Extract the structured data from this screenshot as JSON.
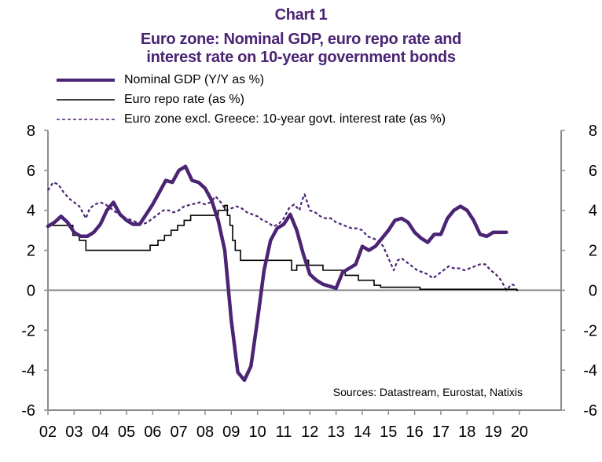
{
  "chart_data": {
    "type": "line",
    "title_line1": "Chart 1",
    "title_line2": "Euro zone: Nominal GDP, euro repo rate and",
    "title_line3": "interest rate on 10-year government bonds",
    "source": "Sources:  Datastream,  Eurostat,  Natixis",
    "xlabel": "",
    "ylabel": "",
    "ylim": [
      -6,
      8
    ],
    "xlim": [
      2002,
      2020.6
    ],
    "y_ticks": [
      "8",
      "6",
      "4",
      "2",
      "0",
      "-2",
      "-4",
      "-6"
    ],
    "y_tick_values": [
      8,
      6,
      4,
      2,
      0,
      -2,
      -4,
      -6
    ],
    "x_ticks": [
      "02",
      "03",
      "04",
      "05",
      "06",
      "07",
      "08",
      "09",
      "10",
      "11",
      "12",
      "13",
      "14",
      "15",
      "16",
      "17",
      "18",
      "19",
      "20"
    ],
    "x_tick_values": [
      2002,
      2003,
      2004,
      2005,
      2006,
      2007,
      2008,
      2009,
      2010,
      2011,
      2012,
      2013,
      2014,
      2015,
      2016,
      2017,
      2018,
      2019,
      2020
    ],
    "legend": "top-left",
    "colors": {
      "gdp": "#4B2474",
      "repo": "#000000",
      "bond": "#4B2474",
      "axis": "#8C8C8C"
    },
    "series": [
      {
        "name": "Nominal GDP (Y/Y as %)",
        "style": "thick-solid",
        "x": [
          2002.0,
          2002.25,
          2002.5,
          2002.75,
          2003.0,
          2003.25,
          2003.5,
          2003.75,
          2004.0,
          2004.25,
          2004.5,
          2004.75,
          2005.0,
          2005.25,
          2005.5,
          2005.75,
          2006.0,
          2006.25,
          2006.5,
          2006.75,
          2007.0,
          2007.25,
          2007.5,
          2007.75,
          2008.0,
          2008.25,
          2008.5,
          2008.75,
          2009.0,
          2009.25,
          2009.5,
          2009.75,
          2010.0,
          2010.25,
          2010.5,
          2010.75,
          2011.0,
          2011.25,
          2011.5,
          2011.75,
          2012.0,
          2012.25,
          2012.5,
          2012.75,
          2013.0,
          2013.25,
          2013.5,
          2013.75,
          2014.0,
          2014.25,
          2014.5,
          2014.75,
          2015.0,
          2015.25,
          2015.5,
          2015.75,
          2016.0,
          2016.25,
          2016.5,
          2016.75,
          2017.0,
          2017.25,
          2017.5,
          2017.75,
          2018.0,
          2018.25,
          2018.5,
          2018.75,
          2019.0,
          2019.25,
          2019.5
        ],
        "values": [
          3.2,
          3.4,
          3.7,
          3.4,
          2.9,
          2.7,
          2.7,
          2.9,
          3.3,
          4.0,
          4.4,
          3.8,
          3.5,
          3.3,
          3.3,
          3.8,
          4.3,
          4.9,
          5.5,
          5.4,
          6.0,
          6.2,
          5.5,
          5.4,
          5.1,
          4.5,
          3.5,
          2.0,
          -1.5,
          -4.1,
          -4.5,
          -3.8,
          -1.5,
          1.0,
          2.5,
          3.1,
          3.3,
          3.8,
          3.0,
          1.8,
          0.8,
          0.5,
          0.3,
          0.2,
          0.1,
          0.9,
          1.1,
          1.3,
          2.2,
          2.0,
          2.2,
          2.6,
          3.0,
          3.5,
          3.6,
          3.4,
          2.9,
          2.6,
          2.4,
          2.8,
          2.8,
          3.6,
          4.0,
          4.2,
          4.0,
          3.5,
          2.8,
          2.7,
          2.9,
          2.9,
          2.9
        ]
      },
      {
        "name": "Euro repo rate (as %)",
        "style": "thin-step",
        "x": [
          2002.0,
          2002.95,
          2003.2,
          2003.45,
          2005.9,
          2006.2,
          2006.45,
          2006.7,
          2006.95,
          2007.2,
          2007.45,
          2008.5,
          2008.75,
          2008.85,
          2008.95,
          2009.05,
          2009.15,
          2009.35,
          2011.3,
          2011.5,
          2011.85,
          2011.95,
          2012.5,
          2013.35,
          2013.85,
          2014.45,
          2014.7,
          2016.2,
          2019.9
        ],
        "values": [
          3.25,
          2.75,
          2.5,
          2.0,
          2.25,
          2.5,
          2.75,
          3.0,
          3.25,
          3.5,
          3.75,
          4.0,
          4.25,
          3.75,
          3.25,
          2.5,
          2.0,
          1.5,
          1.0,
          1.25,
          1.5,
          1.25,
          1.0,
          0.75,
          0.5,
          0.25,
          0.15,
          0.05,
          0.0
        ]
      },
      {
        "name": "Euro zone excl. Greece: 10-year govt. interest rate (as %)",
        "style": "dashed",
        "x": [
          2002.0,
          2002.2,
          2002.4,
          2002.6,
          2002.8,
          2003.0,
          2003.2,
          2003.45,
          2003.6,
          2003.8,
          2004.0,
          2004.2,
          2004.4,
          2004.6,
          2004.8,
          2005.0,
          2005.2,
          2005.4,
          2005.6,
          2005.8,
          2006.0,
          2006.2,
          2006.4,
          2006.6,
          2006.8,
          2007.0,
          2007.2,
          2007.5,
          2007.8,
          2008.0,
          2008.2,
          2008.4,
          2008.6,
          2008.8,
          2009.0,
          2009.2,
          2009.4,
          2009.6,
          2009.8,
          2010.0,
          2010.2,
          2010.4,
          2010.6,
          2010.8,
          2011.0,
          2011.2,
          2011.4,
          2011.6,
          2011.7,
          2011.8,
          2011.9,
          2012.0,
          2012.2,
          2012.4,
          2012.6,
          2012.8,
          2013.0,
          2013.2,
          2013.4,
          2013.6,
          2013.8,
          2014.0,
          2014.2,
          2014.4,
          2014.6,
          2014.8,
          2015.0,
          2015.2,
          2015.35,
          2015.5,
          2015.7,
          2015.9,
          2016.1,
          2016.3,
          2016.5,
          2016.7,
          2016.9,
          2017.1,
          2017.3,
          2017.5,
          2017.7,
          2017.9,
          2018.1,
          2018.3,
          2018.5,
          2018.7,
          2018.9,
          2019.1,
          2019.3,
          2019.5,
          2019.7,
          2019.9
        ],
        "values": [
          5.0,
          5.4,
          5.3,
          4.9,
          4.6,
          4.4,
          4.2,
          3.6,
          4.1,
          4.3,
          4.4,
          4.3,
          4.1,
          3.9,
          3.7,
          3.6,
          3.5,
          3.4,
          3.3,
          3.4,
          3.6,
          3.8,
          4.0,
          4.0,
          3.9,
          4.0,
          4.2,
          4.3,
          4.4,
          4.3,
          4.4,
          4.7,
          4.4,
          4.0,
          4.1,
          4.2,
          4.1,
          3.9,
          3.8,
          3.7,
          3.5,
          3.4,
          3.2,
          3.3,
          3.6,
          4.1,
          4.3,
          4.0,
          4.5,
          4.8,
          4.4,
          4.0,
          3.9,
          3.7,
          3.6,
          3.6,
          3.4,
          3.3,
          3.2,
          3.1,
          3.1,
          3.0,
          2.7,
          2.6,
          2.5,
          2.2,
          1.6,
          1.0,
          1.5,
          1.6,
          1.4,
          1.2,
          1.0,
          0.9,
          0.8,
          0.6,
          0.8,
          1.0,
          1.2,
          1.1,
          1.1,
          1.0,
          1.1,
          1.2,
          1.3,
          1.3,
          1.0,
          0.8,
          0.5,
          0.0,
          0.3,
          0.2
        ]
      }
    ]
  }
}
